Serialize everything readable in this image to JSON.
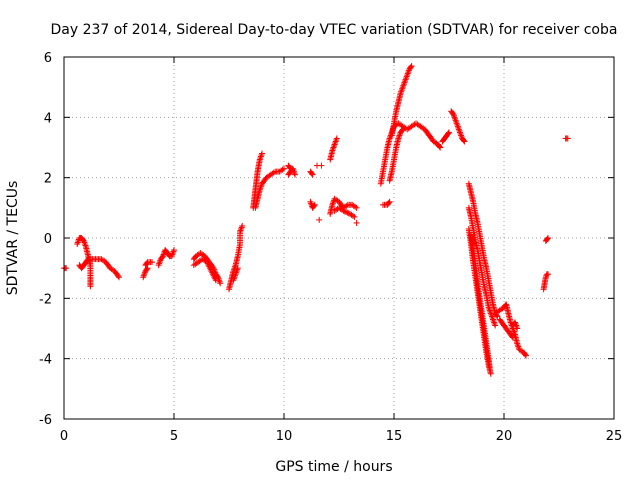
{
  "chart_data": {
    "type": "scatter",
    "title": "Day 237 of 2014, Sidereal Day-to-day VTEC variation (SDTVAR) for receiver coba",
    "xlabel": "GPS time / hours",
    "ylabel": "SDTVAR / TECUs",
    "xlim": [
      0,
      25
    ],
    "ylim": [
      -6,
      6
    ],
    "xticks": [
      "0",
      "5",
      "10",
      "15",
      "20",
      "25"
    ],
    "yticks": [
      "-6",
      "-4",
      "-2",
      "0",
      "2",
      "4",
      "6"
    ],
    "grid": true,
    "marker": "+",
    "marker_color": "#ff0000",
    "series": [
      {
        "segments": [
          [
            [
              0.0,
              -1.0
            ],
            [
              0.1,
              -1.0
            ]
          ],
          [
            [
              0.6,
              -0.2
            ],
            [
              0.7,
              0.0
            ],
            [
              0.8,
              0.0
            ],
            [
              0.9,
              -0.1
            ],
            [
              1.0,
              -0.3
            ],
            [
              1.1,
              -0.6
            ],
            [
              1.2,
              -0.9
            ],
            [
              1.2,
              -1.3
            ],
            [
              1.2,
              -1.6
            ]
          ],
          [
            [
              0.7,
              -0.9
            ],
            [
              0.8,
              -1.0
            ],
            [
              0.9,
              -0.9
            ],
            [
              1.0,
              -0.8
            ],
            [
              1.1,
              -0.7
            ],
            [
              1.3,
              -0.7
            ],
            [
              1.5,
              -0.7
            ],
            [
              1.7,
              -0.7
            ],
            [
              1.9,
              -0.8
            ],
            [
              2.1,
              -1.0
            ],
            [
              2.3,
              -1.1
            ],
            [
              2.5,
              -1.3
            ]
          ],
          [
            [
              3.6,
              -1.3
            ],
            [
              3.7,
              -1.1
            ],
            [
              3.8,
              -1.0
            ]
          ],
          [
            [
              3.7,
              -0.9
            ],
            [
              3.8,
              -0.8
            ],
            [
              4.0,
              -0.8
            ]
          ],
          [
            [
              4.3,
              -0.9
            ],
            [
              4.4,
              -0.7
            ],
            [
              4.5,
              -0.6
            ],
            [
              4.6,
              -0.4
            ],
            [
              4.7,
              -0.5
            ],
            [
              4.8,
              -0.6
            ],
            [
              4.9,
              -0.6
            ],
            [
              5.0,
              -0.4
            ]
          ],
          [
            [
              5.9,
              -0.7
            ],
            [
              6.0,
              -0.6
            ],
            [
              6.2,
              -0.5
            ],
            [
              6.4,
              -0.6
            ],
            [
              6.6,
              -0.8
            ],
            [
              6.8,
              -1.0
            ],
            [
              6.9,
              -1.2
            ],
            [
              7.0,
              -1.3
            ],
            [
              7.1,
              -1.5
            ]
          ],
          [
            [
              5.9,
              -0.9
            ],
            [
              6.1,
              -0.8
            ],
            [
              6.3,
              -0.7
            ],
            [
              6.5,
              -0.8
            ],
            [
              6.7,
              -1.1
            ],
            [
              6.9,
              -1.4
            ]
          ],
          [
            [
              7.5,
              -1.7
            ],
            [
              7.6,
              -1.4
            ],
            [
              7.7,
              -1.1
            ],
            [
              7.8,
              -0.9
            ],
            [
              7.9,
              -0.6
            ],
            [
              8.0,
              -0.2
            ],
            [
              8.0,
              0.2
            ],
            [
              8.1,
              0.4
            ]
          ],
          [
            [
              7.7,
              -1.4
            ],
            [
              7.8,
              -1.2
            ],
            [
              7.9,
              -1.0
            ]
          ],
          [
            [
              8.6,
              1.0
            ],
            [
              8.65,
              1.3
            ],
            [
              8.7,
              1.6
            ],
            [
              8.75,
              1.9
            ],
            [
              8.8,
              2.2
            ],
            [
              8.85,
              2.4
            ],
            [
              8.9,
              2.6
            ],
            [
              8.95,
              2.7
            ],
            [
              9.0,
              2.8
            ]
          ],
          [
            [
              8.7,
              1.0
            ],
            [
              8.8,
              1.3
            ],
            [
              8.9,
              1.6
            ],
            [
              9.0,
              1.8
            ],
            [
              9.2,
              2.0
            ],
            [
              9.4,
              2.1
            ],
            [
              9.6,
              2.2
            ],
            [
              9.8,
              2.2
            ],
            [
              10.0,
              2.3
            ]
          ],
          [
            [
              10.2,
              2.1
            ],
            [
              10.3,
              2.2
            ],
            [
              10.4,
              2.3
            ],
            [
              10.5,
              2.1
            ]
          ],
          [
            [
              10.2,
              2.4
            ],
            [
              10.3,
              2.3
            ]
          ],
          [
            [
              11.2,
              2.2
            ],
            [
              11.3,
              2.1
            ]
          ],
          [
            [
              11.2,
              1.2
            ],
            [
              11.3,
              1.0
            ],
            [
              11.4,
              1.1
            ]
          ],
          [
            [
              11.5,
              2.4
            ]
          ],
          [
            [
              11.6,
              0.6
            ]
          ],
          [
            [
              11.7,
              2.4
            ]
          ],
          [
            [
              12.1,
              2.6
            ],
            [
              12.2,
              2.9
            ],
            [
              12.3,
              3.1
            ],
            [
              12.4,
              3.3
            ]
          ],
          [
            [
              12.1,
              0.8
            ],
            [
              12.2,
              1.1
            ],
            [
              12.3,
              1.3
            ],
            [
              12.5,
              1.2
            ],
            [
              12.7,
              1.0
            ],
            [
              12.9,
              1.1
            ],
            [
              13.1,
              1.1
            ],
            [
              13.3,
              1.0
            ]
          ],
          [
            [
              12.3,
              0.9
            ],
            [
              12.5,
              1.0
            ],
            [
              12.7,
              0.9
            ],
            [
              13.0,
              0.8
            ],
            [
              13.2,
              0.7
            ]
          ],
          [
            [
              13.3,
              0.5
            ]
          ],
          [
            [
              14.5,
              1.1
            ],
            [
              14.7,
              1.1
            ],
            [
              14.8,
              1.2
            ]
          ],
          [
            [
              14.4,
              1.8
            ],
            [
              14.5,
              2.2
            ],
            [
              14.6,
              2.6
            ],
            [
              14.7,
              3.0
            ],
            [
              14.8,
              3.3
            ],
            [
              14.9,
              3.5
            ],
            [
              15.0,
              3.7
            ],
            [
              15.2,
              3.8
            ],
            [
              15.4,
              3.7
            ],
            [
              15.6,
              3.6
            ],
            [
              15.8,
              3.7
            ],
            [
              16.0,
              3.8
            ],
            [
              16.2,
              3.7
            ],
            [
              16.4,
              3.6
            ],
            [
              16.6,
              3.4
            ],
            [
              16.8,
              3.2
            ],
            [
              17.0,
              3.1
            ],
            [
              17.1,
              3.0
            ]
          ],
          [
            [
              14.8,
              1.9
            ],
            [
              14.9,
              2.2
            ],
            [
              15.0,
              2.6
            ],
            [
              15.1,
              3.0
            ],
            [
              15.2,
              3.3
            ],
            [
              15.3,
              3.5
            ],
            [
              15.4,
              3.6
            ]
          ],
          [
            [
              14.9,
              3.4
            ],
            [
              15.0,
              3.8
            ],
            [
              15.1,
              4.2
            ],
            [
              15.2,
              4.5
            ],
            [
              15.3,
              4.8
            ],
            [
              15.4,
              5.0
            ],
            [
              15.5,
              5.2
            ],
            [
              15.6,
              5.4
            ],
            [
              15.7,
              5.6
            ],
            [
              15.8,
              5.7
            ]
          ],
          [
            [
              17.2,
              3.2
            ],
            [
              17.3,
              3.3
            ],
            [
              17.4,
              3.4
            ],
            [
              17.5,
              3.5
            ]
          ],
          [
            [
              17.6,
              4.2
            ],
            [
              17.7,
              4.1
            ],
            [
              17.8,
              3.9
            ],
            [
              17.9,
              3.7
            ],
            [
              18.0,
              3.5
            ],
            [
              18.1,
              3.3
            ],
            [
              18.2,
              3.2
            ]
          ],
          [
            [
              18.4,
              1.8
            ],
            [
              18.5,
              1.5
            ],
            [
              18.6,
              1.2
            ],
            [
              18.7,
              0.8
            ],
            [
              18.8,
              0.5
            ],
            [
              18.9,
              0.1
            ],
            [
              19.0,
              -0.3
            ],
            [
              19.1,
              -0.7
            ],
            [
              19.2,
              -1.0
            ],
            [
              19.3,
              -1.4
            ],
            [
              19.4,
              -1.8
            ],
            [
              19.5,
              -2.2
            ],
            [
              19.6,
              -2.5
            ],
            [
              19.7,
              -2.6
            ]
          ],
          [
            [
              18.4,
              1.0
            ],
            [
              18.5,
              0.7
            ],
            [
              18.6,
              0.3
            ],
            [
              18.7,
              -0.1
            ],
            [
              18.8,
              -0.4
            ],
            [
              18.9,
              -0.8
            ],
            [
              19.0,
              -1.2
            ],
            [
              19.1,
              -1.6
            ],
            [
              19.2,
              -1.9
            ],
            [
              19.3,
              -2.3
            ],
            [
              19.4,
              -2.5
            ],
            [
              19.5,
              -2.7
            ],
            [
              19.6,
              -2.9
            ]
          ],
          [
            [
              18.4,
              0.3
            ],
            [
              18.5,
              -0.2
            ],
            [
              18.6,
              -0.8
            ],
            [
              18.7,
              -1.3
            ],
            [
              18.8,
              -1.8
            ],
            [
              18.9,
              -2.3
            ],
            [
              19.0,
              -2.8
            ],
            [
              19.1,
              -3.3
            ],
            [
              19.2,
              -3.8
            ],
            [
              19.3,
              -4.2
            ],
            [
              19.4,
              -4.5
            ]
          ],
          [
            [
              18.5,
              0.1
            ],
            [
              18.6,
              -0.4
            ],
            [
              18.7,
              -0.9
            ],
            [
              18.8,
              -1.5
            ],
            [
              18.9,
              -2.0
            ],
            [
              19.0,
              -2.5
            ],
            [
              19.1,
              -3.0
            ],
            [
              19.2,
              -3.5
            ],
            [
              19.3,
              -4.0
            ],
            [
              19.35,
              -4.3
            ]
          ],
          [
            [
              19.6,
              -2.5
            ],
            [
              19.8,
              -2.4
            ],
            [
              20.0,
              -2.3
            ],
            [
              20.1,
              -2.2
            ],
            [
              20.2,
              -2.5
            ],
            [
              20.3,
              -2.8
            ],
            [
              20.4,
              -3.0
            ],
            [
              20.5,
              -3.2
            ],
            [
              20.6,
              -3.5
            ],
            [
              20.7,
              -3.7
            ],
            [
              20.9,
              -3.8
            ],
            [
              21.0,
              -3.9
            ]
          ],
          [
            [
              19.8,
              -2.7
            ],
            [
              20.0,
              -2.9
            ],
            [
              20.2,
              -3.1
            ],
            [
              20.4,
              -3.3
            ]
          ],
          [
            [
              20.4,
              -2.9
            ],
            [
              20.5,
              -2.8
            ],
            [
              20.6,
              -3.0
            ]
          ],
          [
            [
              21.8,
              -1.7
            ],
            [
              21.85,
              -1.5
            ],
            [
              21.9,
              -1.3
            ],
            [
              21.95,
              -1.2
            ],
            [
              22.0,
              -1.2
            ]
          ],
          [
            [
              21.9,
              -0.1
            ],
            [
              22.0,
              0.0
            ]
          ],
          [
            [
              22.8,
              3.3
            ],
            [
              22.9,
              3.3
            ]
          ]
        ]
      }
    ]
  }
}
